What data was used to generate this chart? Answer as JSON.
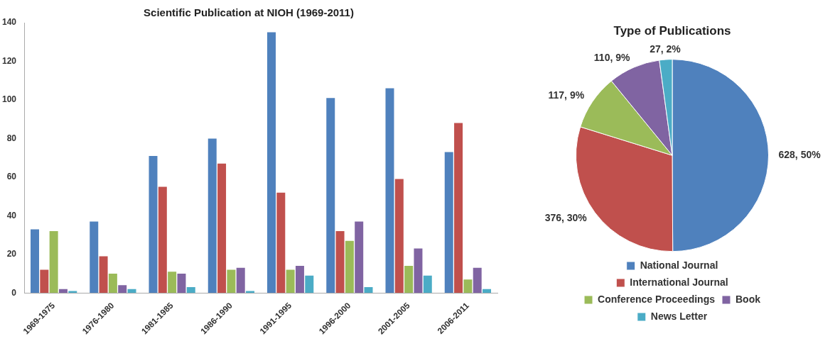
{
  "chart_data": [
    {
      "type": "bar",
      "title": "Scientific Publication at NIOH (1969-2011)",
      "categories": [
        "1969-1975",
        "1976-1980",
        "1981-1985",
        "1986-1990",
        "1991-1995",
        "1996-2000",
        "2001-2005",
        "2006-2011"
      ],
      "series": [
        {
          "color": "#4f81bd",
          "values": [
            33,
            37,
            71,
            80,
            135,
            101,
            106,
            73
          ]
        },
        {
          "color": "#c0504d",
          "values": [
            12,
            19,
            55,
            67,
            52,
            32,
            59,
            88
          ]
        },
        {
          "color": "#9bbb59",
          "values": [
            32,
            10,
            11,
            12,
            12,
            27,
            14,
            7
          ]
        },
        {
          "color": "#8064a2",
          "values": [
            2,
            4,
            10,
            13,
            14,
            37,
            23,
            13
          ]
        },
        {
          "color": "#4bacc6",
          "values": [
            1,
            2,
            3,
            1,
            9,
            3,
            9,
            2
          ]
        }
      ],
      "ylim": [
        0,
        140
      ],
      "yticks": [
        0,
        20,
        40,
        60,
        80,
        100,
        120,
        140
      ],
      "grid": false,
      "legend": false
    },
    {
      "type": "pie",
      "title": "Type of Publications",
      "categories": [
        "National Journal",
        "International Journal",
        "Conference Proceedings",
        "Book",
        "News Letter"
      ],
      "values": [
        628,
        376,
        117,
        110,
        27
      ],
      "colors": [
        "#4f81bd",
        "#c0504d",
        "#9bbb59",
        "#8064a2",
        "#4bacc6"
      ],
      "value_labels": [
        "628, 50%",
        "376, 30%",
        "117, 9%",
        "110, 9%",
        "27, 2%"
      ],
      "legend": "bottom"
    }
  ]
}
